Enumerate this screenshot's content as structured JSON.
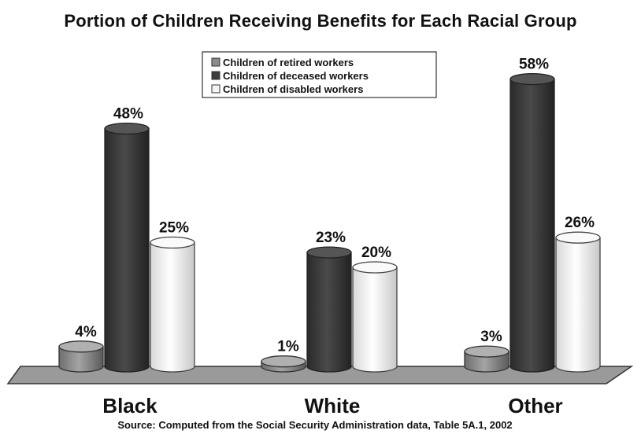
{
  "chart_data": {
    "type": "bar",
    "title": "Portion of Children Receiving Benefits for Each Racial Group",
    "categories": [
      "Black",
      "White",
      "Other"
    ],
    "series": [
      {
        "name": "Children of retired workers",
        "values": [
          4,
          1,
          3
        ],
        "labels": [
          "4%",
          "1%",
          "3%"
        ],
        "color": "#8c8c8c"
      },
      {
        "name": "Children of deceased workers",
        "values": [
          48,
          23,
          58
        ],
        "labels": [
          "48%",
          "23%",
          "58%"
        ],
        "color": "#3c3c3c"
      },
      {
        "name": "Children of disabled workers",
        "values": [
          25,
          20,
          26
        ],
        "labels": [
          "25%",
          "20%",
          "26%"
        ],
        "color": "#f4f4f4"
      }
    ],
    "ylim": [
      0,
      60
    ],
    "legend_position": "top-center",
    "grid": false,
    "source": "Source: Computed from the Social Security Administration data, Table 5A.1, 2002"
  }
}
